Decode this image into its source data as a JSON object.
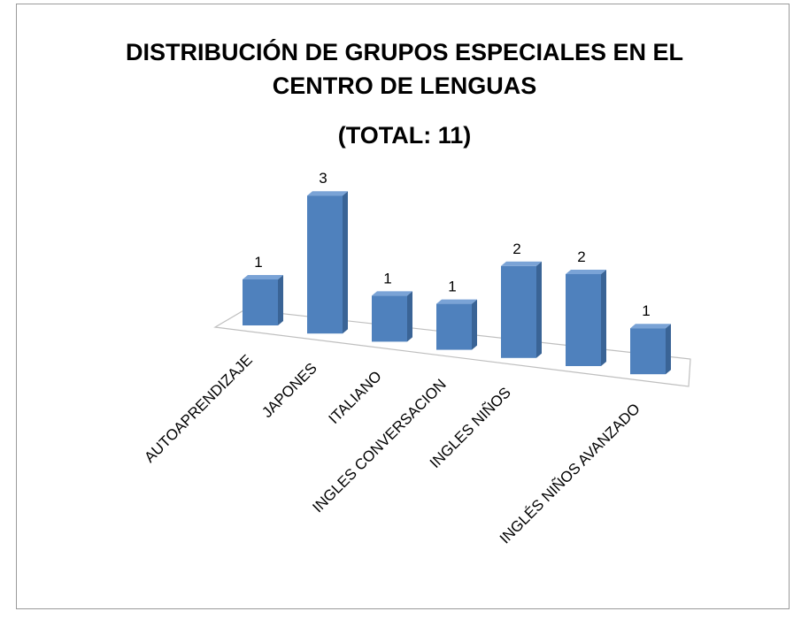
{
  "chart_data": {
    "type": "bar3d",
    "title": "DISTRIBUCIÓN DE GRUPOS ESPECIALES EN EL CENTRO DE LENGUAS",
    "subtitle": "(TOTAL: 11)",
    "categories": [
      "AUTOAPRENDIZAJE",
      "JAPONES",
      "ITALIANO",
      "INGLES CONVERSACION",
      "INGLES NIÑOS",
      null,
      "INGLÉS NIÑOS AVANZADO"
    ],
    "values": [
      1,
      3,
      1,
      1,
      2,
      2,
      1
    ],
    "color": "#4f81bd"
  }
}
